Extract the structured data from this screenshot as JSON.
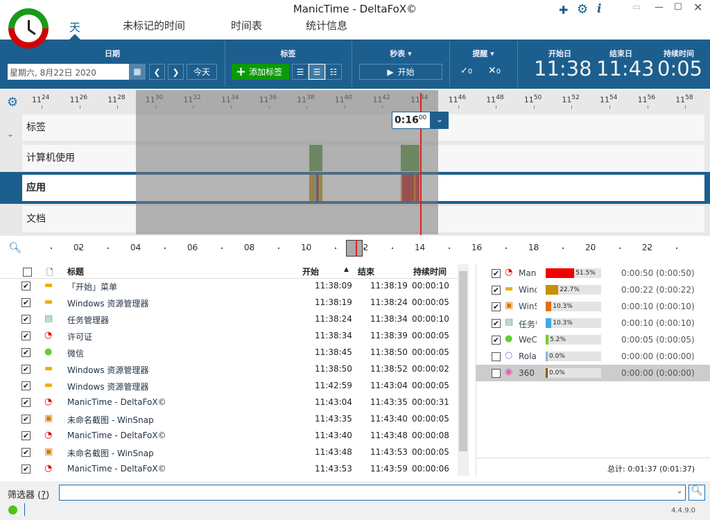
{
  "window": {
    "title": "ManicTime - DeltaFoX©",
    "icons": [
      "puzzle-icon",
      "gear-icon",
      "info-icon"
    ]
  },
  "nav": [
    "天",
    "未标记的时间",
    "时间表",
    "统计信息"
  ],
  "ribbon": {
    "date": {
      "header": "日期",
      "value": "星期六, 8月22日 2020",
      "today": "今天"
    },
    "tags": {
      "header": "标签",
      "add": "添加标签"
    },
    "stopwatch": {
      "header": "秒表",
      "start": "开始"
    },
    "reminder": {
      "header": "提醒",
      "done": "0",
      "dismissed": "0"
    },
    "start": {
      "header": "开始日",
      "value": "11:38"
    },
    "end": {
      "header": "结束日",
      "value": "11:43"
    },
    "duration": {
      "header": "持续时间",
      "value": "0:05"
    }
  },
  "timeline": {
    "ticks": [
      [
        "11",
        "24"
      ],
      [
        "11",
        "26"
      ],
      [
        "11",
        "28"
      ],
      [
        "11",
        "30"
      ],
      [
        "11",
        "32"
      ],
      [
        "11",
        "34"
      ],
      [
        "11",
        "36"
      ],
      [
        "11",
        "38"
      ],
      [
        "11",
        "40"
      ],
      [
        "11",
        "42"
      ],
      [
        "11",
        "44"
      ],
      [
        "11",
        "46"
      ],
      [
        "11",
        "48"
      ],
      [
        "11",
        "50"
      ],
      [
        "11",
        "52"
      ],
      [
        "11",
        "54"
      ],
      [
        "11",
        "56"
      ],
      [
        "11",
        "58"
      ]
    ],
    "rows": [
      "标签",
      "计算机使用",
      "应用",
      "文档"
    ],
    "cursor": {
      "main": "0:16",
      "sup": "00"
    },
    "overview_labels": [
      "02",
      "04",
      "06",
      "08",
      "10",
      "12",
      "14",
      "16",
      "18",
      "20",
      "22"
    ]
  },
  "list": {
    "headers": {
      "title": "标题",
      "start": "开始",
      "end": "结束",
      "duration": "持续时间"
    },
    "rows": [
      {
        "icon": "windows-folder-icon",
        "title": "「开始」菜单",
        "start": "11:38:09",
        "end": "11:38:19",
        "dur": "00:00:10"
      },
      {
        "icon": "windows-folder-icon",
        "title": "Windows 资源管理器",
        "start": "11:38:19",
        "end": "11:38:24",
        "dur": "00:00:05"
      },
      {
        "icon": "task-manager-icon",
        "title": "任务管理器",
        "start": "11:38:24",
        "end": "11:38:34",
        "dur": "00:00:10"
      },
      {
        "icon": "manictime-icon",
        "title": "许可证",
        "start": "11:38:34",
        "end": "11:38:39",
        "dur": "00:00:05"
      },
      {
        "icon": "wechat-icon",
        "title": "微信",
        "start": "11:38:45",
        "end": "11:38:50",
        "dur": "00:00:05"
      },
      {
        "icon": "windows-folder-icon",
        "title": "Windows 资源管理器",
        "start": "11:38:50",
        "end": "11:38:52",
        "dur": "00:00:02"
      },
      {
        "icon": "windows-folder-icon",
        "title": "Windows 资源管理器",
        "start": "11:42:59",
        "end": "11:43:04",
        "dur": "00:00:05"
      },
      {
        "icon": "manictime-icon",
        "title": "ManicTime - DeltaFoX©",
        "start": "11:43:04",
        "end": "11:43:35",
        "dur": "00:00:31"
      },
      {
        "icon": "winsnap-icon",
        "title": "未命名截图 - WinSnap",
        "start": "11:43:35",
        "end": "11:43:40",
        "dur": "00:00:05"
      },
      {
        "icon": "manictime-icon",
        "title": "ManicTime - DeltaFoX©",
        "start": "11:43:40",
        "end": "11:43:48",
        "dur": "00:00:08"
      },
      {
        "icon": "winsnap-icon",
        "title": "未命名截图 - WinSnap",
        "start": "11:43:48",
        "end": "11:43:53",
        "dur": "00:00:05"
      },
      {
        "icon": "manictime-icon",
        "title": "ManicTime - DeltaFoX©",
        "start": "11:43:53",
        "end": "11:43:59",
        "dur": "00:00:06"
      }
    ]
  },
  "apps": {
    "rows": [
      {
        "checked": true,
        "name": "Man",
        "pct": 51.5,
        "pct_label": "51.5%",
        "color": "#f00000",
        "time": "0:00:50 (0:00:50)"
      },
      {
        "checked": true,
        "name": "Wind",
        "pct": 22.7,
        "pct_label": "22.7%",
        "color": "#c89000",
        "time": "0:00:22 (0:00:22)"
      },
      {
        "checked": true,
        "name": "WinS",
        "pct": 10.3,
        "pct_label": "10.3%",
        "color": "#e07000",
        "time": "0:00:10 (0:00:10)"
      },
      {
        "checked": true,
        "name": "任务管",
        "pct": 10.3,
        "pct_label": "10.3%",
        "color": "#40a8e8",
        "time": "0:00:10 (0:00:10)"
      },
      {
        "checked": true,
        "name": "WeC",
        "pct": 5.2,
        "pct_label": "5.2%",
        "color": "#70d020",
        "time": "0:00:05 (0:00:05)"
      },
      {
        "checked": false,
        "name": "Rola",
        "pct": 0,
        "pct_label": "0.0%",
        "color": "#90b0e0",
        "time": "0:00:00 (0:00:00)"
      },
      {
        "checked": false,
        "name": "360",
        "pct": 0,
        "pct_label": "0.0%",
        "color": "#806000",
        "time": "0:00:00 (0:00:00)"
      }
    ],
    "total": "总计: 0:01:37 (0:01:37)"
  },
  "filter": {
    "label": "筛选器",
    "help": "?",
    "value": ""
  },
  "status": {
    "version": "4.4.9.0"
  }
}
